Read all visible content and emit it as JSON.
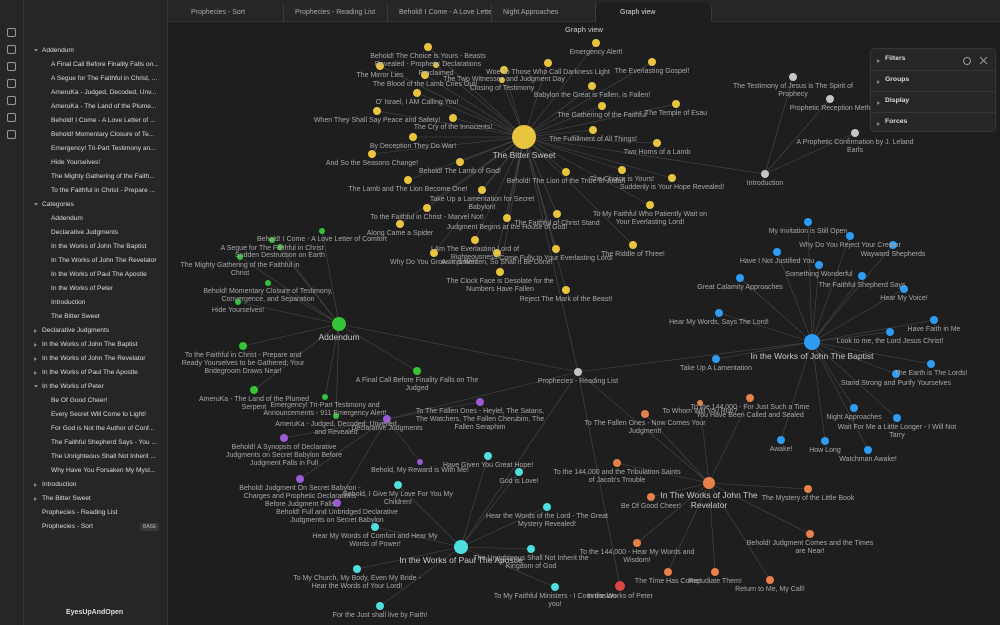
{
  "tabs": [
    "Prophecies - Sort",
    "Prophecies - Reading List",
    "Behold! I Come - A Love Lette...",
    "Night Approaches",
    "Graph view"
  ],
  "view_title": "Graph view",
  "sidebar": {
    "folders": [
      {
        "name": "Addendum",
        "children": [
          "A Final Call Before Finality Falls on...",
          "A Segue for The Faithful in Christ, ...",
          "AmeruKa - Judged, Decoded, Unv...",
          "AmeruKa - The Land of the Plume...",
          "Behold! I Come - A Love Letter of ...",
          "Behold! Momentary Closure of Te...",
          "Emergency! Tri-Part Testimony an...",
          "Hide Yourselves!",
          "The Mighty Gathering of the Faith...",
          "To the Faithful in Christ - Prepare ..."
        ]
      },
      {
        "name": "Categories",
        "children": [
          "Addendum",
          "Declarative Judgments",
          "In the Works of John The Baptist",
          "In The Works of John The Revelator",
          "In the Works of Paul The Apostle",
          "In the Works of Peter",
          "Introduction",
          "The Bitter Sweet"
        ]
      },
      {
        "name": "Declarative Judgments"
      },
      {
        "name": "In the Works of John The Baptist"
      },
      {
        "name": "In the Works of John The Revelator"
      },
      {
        "name": "In the Works of Paul The Apostle"
      },
      {
        "name": "In the Works of Peter",
        "children": [
          "Be Of Good Cheer!",
          "Every Secret Will Come to Light!",
          "For God is Not the Author of Conf...",
          "The Faithful Shepherd Says - You ...",
          "The Unrighteous Shall Not Inherit ...",
          "Why Have You Forsaken My Myst..."
        ]
      },
      {
        "name": "Introduction"
      },
      {
        "name": "The Bitter Sweet"
      }
    ],
    "files": [
      {
        "name": "Prophecies - Reading List"
      },
      {
        "name": "Prophecies - Sort",
        "badge": "BASE"
      }
    ]
  },
  "vault_name": "EyesUpAndOpen",
  "graph_controls": [
    "Filters",
    "Groups",
    "Display",
    "Forces"
  ],
  "graph": {
    "nodes": [
      "The Bitter Sweet",
      "Behold! The Lion of the Tribe of Judah",
      "The Choice is Yours!",
      "Suddenly is Your Hope Revealed!",
      "Two Horns of a Lamb",
      "The Fulfillment of All Things!",
      "The Gathering of the Faithful",
      "The Temple of Esau",
      "Babylon the Great is Fallen, is Fallen!",
      "The Everlasting Gospel!",
      "Woe To Those Who Call Darkness Light",
      "The Two Witnesses and Judgment Day",
      "Closing of Testimony",
      "Behold! The Choice is Yours - Beasts Revealed - Prophetic Declarations",
      "Proclaimed",
      "The Blood of the Lamb Cries Out!",
      "The Mirror Lies",
      "Emergency Alert!",
      "O' Israel, I AM Calling You!",
      "When They Shall Say Peace and Safety!",
      "The Cry of the Innocents!",
      "By Deception They Do War!",
      "And So the Seasons Change!",
      "Behold! The Lamb of God!",
      "The Lamb and The Lion Become One!",
      "Take Up a Lamentation for Secret Babylon!",
      "To the Faithful in Christ - Marvel Not!",
      "Judgment Begins at the House of God!",
      "Along Came a Spider",
      "The Faithful of Christ Stand",
      "To My Faithful Who Patiently Wait on Your Everlasting Lord!",
      "I Am The Everlasting Lord of Righteousness!",
      "Why Do You Grow Impatient",
      "As it is Written, So Shall it Be Done!",
      "Come Fully to Your Everlasting Lord!",
      "The Riddle of Three!",
      "The Clock Face is Desolate for the Numbers Have Fallen",
      "Reject The Mark of the Beast!",
      "Introduction",
      "The Testimony of Jesus is The Spirit of Prophecy",
      "Prophetic Reception Meth",
      "A Prophetic Confirmation by J. Leland Earls",
      "Prophecies - Reading List",
      "Addendum",
      "Behold! I Come - A Love Letter of Comfort",
      "A Segue for The Faithful in Christ",
      "Sudden Destruction on Earth",
      "The Mighty Gathering of the Faithful in Christ",
      "Behold! Momentary Closure of Testimony, Convergence, and Separation",
      "Hide Yourselves!",
      "To the Faithful in Christ - Prepare and Ready Yourselves to be Gathered; Your Bridegroom Draws Near!",
      "A Final Call Before Finality Falls on The Judged",
      "AmeruKa - The Land of the Plumed Serpent",
      "Emergency! Tri-Part Testimony and Announcements - 911 Emergency Alert!",
      "AmeruKa - Judged, Decoded, Unveiled and Revealed",
      "Declarative Judgments",
      "Behold! A Synopsis of Declarative Judgments on Secret Babylon Before Judgment Falls in Full",
      "To The Fallen Ones - Heylel, The Satans, The Watchers, The Fallen Cherubim, The Fallen Seraphim",
      "Behold, My Reward is With Me!",
      "Behold! Judgment On Secret Babylon - Charges and Prophetic Declarations Before Judgment Falls",
      "Behold! Full and Unbridged Declarative Judgments on Secret Babylon",
      "In the Works of Paul The Apostle",
      "Have Given You Great Hope!",
      "God is Love!",
      "Behold, I Give My Love For You My Children!",
      "Hear the Words of the Lord - The Great Mystery Revealed!",
      "Hear My Words of Comfort and Hear My Words of Power!",
      "The Unrighteous Shall Not Inherit the Kingdom of God",
      "To My Church, My Body, Even My Bride - Hear the Words of Your Lord!",
      "To My Faithful Ministers - I Commission you!",
      "For the Just shall live by Faith!",
      "In the Works of John The Baptist",
      "My Invitation is Still Open",
      "Why Do You Reject Your Creator",
      "Wayward Shepherds",
      "Have I Not Justified You",
      "Something Wonderful",
      "Great Calamity Approaches",
      "The Faithful Shepherd Says",
      "Hear My Voice!",
      "Hear My Words, Says The Lord!",
      "Have Faith in Me",
      "Look to me, the Lord Jesus Christ!",
      "Take Up A Lamentation",
      "The Earth is The Lords!",
      "Stand Strong and Purify Yourselves",
      "Night Approaches",
      "Wait For Me a Little Longer - I Will Not Tarry",
      "Awake!",
      "How Long",
      "Watchman Awake!",
      "In The Works of John The Revelator",
      "To the 144,000 - For Just Such a Time You Have Been Called and Sealed",
      "To Whom Will You Run?",
      "To The Fallen Ones - Now Comes Your Judgment!",
      "To the 144,000 and the Tribulation Saints of Jacob's Trouble",
      "The Mystery of the Little Book",
      "Be Of Good Cheer!",
      "Behold! Judgment Comes and the Times are Near!",
      "To the 144,000 - Hear My Words and Wisdom!",
      "The Time Has Come!",
      "Repudiate Them!",
      "Return to Me, My Call!",
      "In the Works of Peter"
    ]
  }
}
